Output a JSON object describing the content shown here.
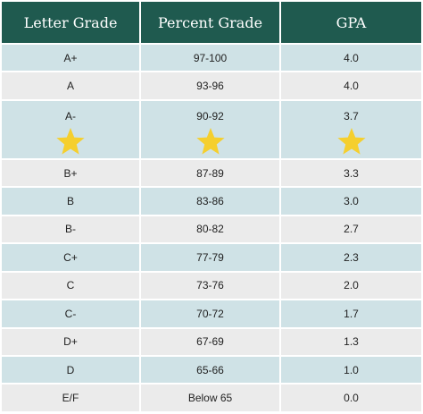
{
  "headers": [
    "Letter Grade",
    "Percent Grade",
    "GPA"
  ],
  "rows": [
    {
      "letter": "A+",
      "percent": "97-100",
      "gpa": "4.0"
    },
    {
      "letter": "A",
      "percent": "93-96",
      "gpa": "4.0"
    },
    {
      "letter": "A-",
      "percent": "90-92",
      "gpa": "3.7"
    },
    {
      "letter": "B+",
      "percent": "87-89",
      "gpa": "3.3"
    },
    {
      "letter": "B",
      "percent": "83-86",
      "gpa": "3.0"
    },
    {
      "letter": "B-",
      "percent": "80-82",
      "gpa": "2.7"
    },
    {
      "letter": "C+",
      "percent": "77-79",
      "gpa": "2.3"
    },
    {
      "letter": "C",
      "percent": "73-76",
      "gpa": "2.0"
    },
    {
      "letter": "C-",
      "percent": "70-72",
      "gpa": "1.7"
    },
    {
      "letter": "D+",
      "percent": "67-69",
      "gpa": "1.3"
    },
    {
      "letter": "D",
      "percent": "65-66",
      "gpa": "1.0"
    },
    {
      "letter": "E/F",
      "percent": "Below 65",
      "gpa": "0.0"
    }
  ],
  "highlight_icon": "star-icon",
  "colors": {
    "header_bg": "#1f5a4f",
    "row_blue": "#cfe2e6",
    "row_gray": "#ebebeb",
    "star": "#f5cf2e"
  }
}
